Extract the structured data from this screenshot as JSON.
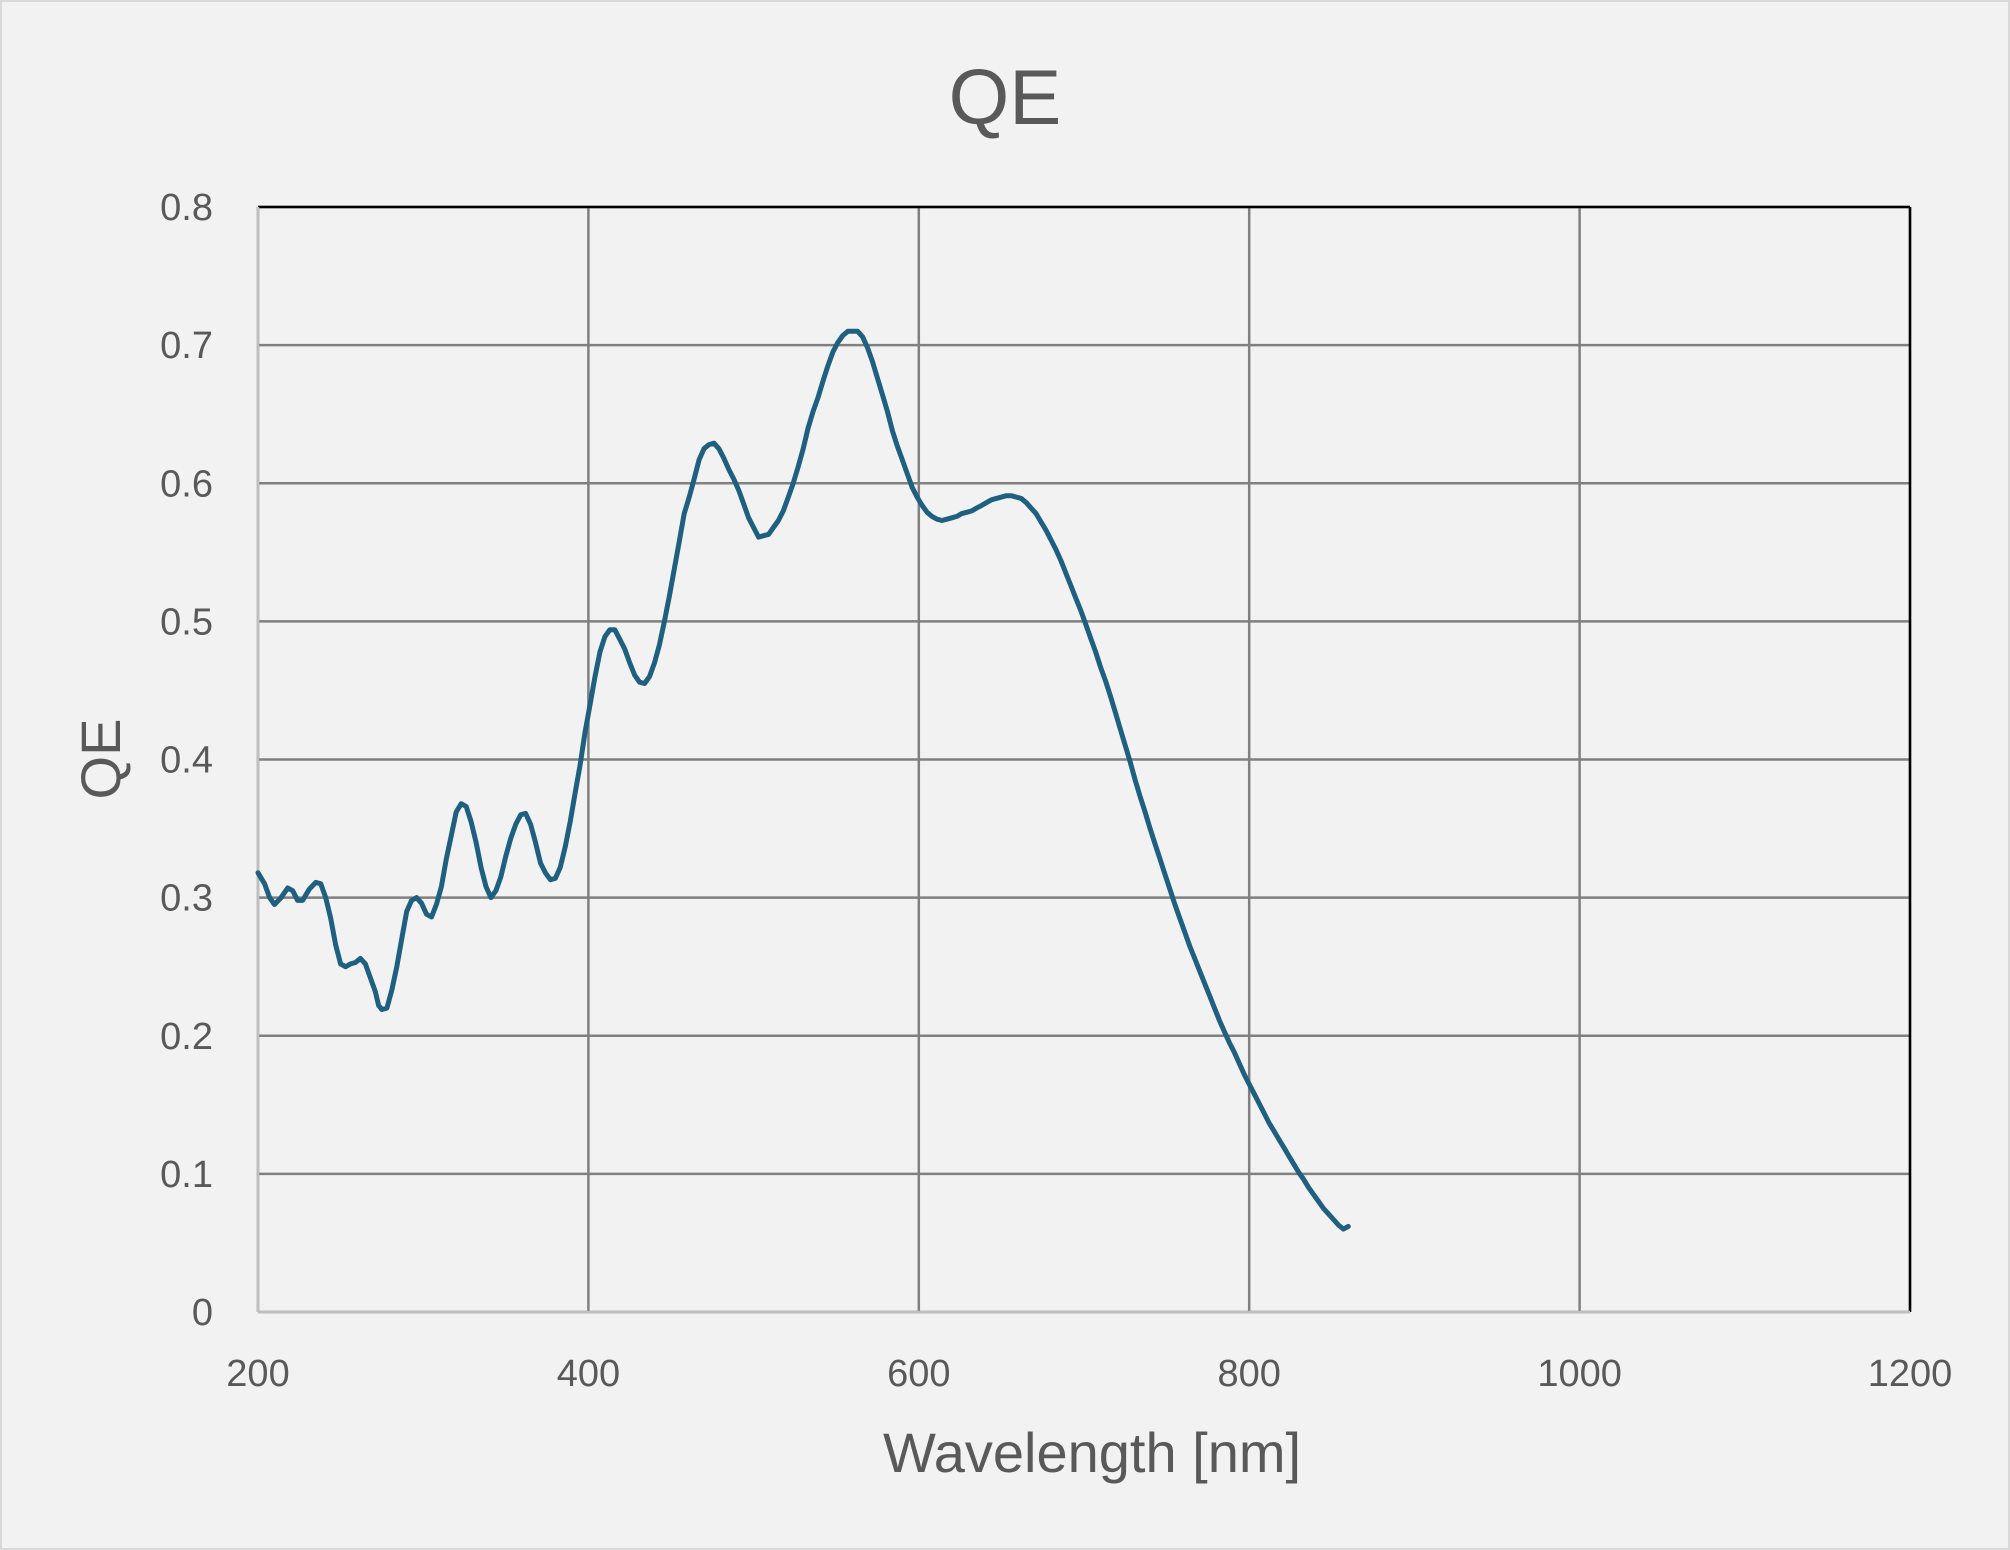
{
  "chart_data": {
    "type": "line",
    "title": "QE",
    "xlabel": "Wavelength [nm]",
    "ylabel": "QE",
    "xlim": [
      200,
      1200
    ],
    "ylim": [
      0,
      0.8
    ],
    "x_ticks": [
      "200",
      "400",
      "600",
      "800",
      "1000",
      "1200"
    ],
    "y_ticks": [
      "0",
      "0.1",
      "0.2",
      "0.3",
      "0.4",
      "0.5",
      "0.6",
      "0.7",
      "0.8"
    ],
    "grid": true,
    "legend": "none",
    "series": [
      {
        "color": "#1f5f7f",
        "points": [
          [
            200,
            0.318
          ],
          [
            204,
            0.31
          ],
          [
            207,
            0.3
          ],
          [
            210,
            0.295
          ],
          [
            214,
            0.3
          ],
          [
            218,
            0.307
          ],
          [
            221,
            0.305
          ],
          [
            224,
            0.298
          ],
          [
            227,
            0.298
          ],
          [
            231,
            0.306
          ],
          [
            235,
            0.311
          ],
          [
            238,
            0.31
          ],
          [
            241,
            0.3
          ],
          [
            244,
            0.285
          ],
          [
            247,
            0.266
          ],
          [
            250,
            0.252
          ],
          [
            253,
            0.25
          ],
          [
            256,
            0.252
          ],
          [
            259,
            0.253
          ],
          [
            262,
            0.256
          ],
          [
            265,
            0.252
          ],
          [
            268,
            0.242
          ],
          [
            271,
            0.232
          ],
          [
            273,
            0.222
          ],
          [
            275,
            0.219
          ],
          [
            278,
            0.22
          ],
          [
            281,
            0.233
          ],
          [
            284,
            0.25
          ],
          [
            287,
            0.27
          ],
          [
            290,
            0.29
          ],
          [
            293,
            0.298
          ],
          [
            296,
            0.3
          ],
          [
            299,
            0.296
          ],
          [
            302,
            0.288
          ],
          [
            305,
            0.286
          ],
          [
            308,
            0.295
          ],
          [
            311,
            0.308
          ],
          [
            314,
            0.328
          ],
          [
            317,
            0.345
          ],
          [
            320,
            0.362
          ],
          [
            323,
            0.368
          ],
          [
            326,
            0.366
          ],
          [
            329,
            0.355
          ],
          [
            332,
            0.34
          ],
          [
            335,
            0.322
          ],
          [
            338,
            0.308
          ],
          [
            341,
            0.3
          ],
          [
            344,
            0.305
          ],
          [
            347,
            0.315
          ],
          [
            350,
            0.33
          ],
          [
            353,
            0.343
          ],
          [
            356,
            0.353
          ],
          [
            359,
            0.36
          ],
          [
            362,
            0.361
          ],
          [
            365,
            0.353
          ],
          [
            368,
            0.34
          ],
          [
            371,
            0.325
          ],
          [
            374,
            0.318
          ],
          [
            377,
            0.313
          ],
          [
            380,
            0.314
          ],
          [
            383,
            0.322
          ],
          [
            386,
            0.337
          ],
          [
            389,
            0.355
          ],
          [
            392,
            0.376
          ],
          [
            395,
            0.396
          ],
          [
            398,
            0.42
          ],
          [
            401,
            0.44
          ],
          [
            404,
            0.46
          ],
          [
            407,
            0.478
          ],
          [
            410,
            0.489
          ],
          [
            413,
            0.494
          ],
          [
            416,
            0.494
          ],
          [
            419,
            0.487
          ],
          [
            422,
            0.48
          ],
          [
            425,
            0.47
          ],
          [
            428,
            0.461
          ],
          [
            431,
            0.456
          ],
          [
            434,
            0.455
          ],
          [
            437,
            0.46
          ],
          [
            440,
            0.47
          ],
          [
            443,
            0.483
          ],
          [
            446,
            0.5
          ],
          [
            449,
            0.518
          ],
          [
            452,
            0.538
          ],
          [
            455,
            0.558
          ],
          [
            458,
            0.578
          ],
          [
            461,
            0.59
          ],
          [
            464,
            0.603
          ],
          [
            467,
            0.617
          ],
          [
            470,
            0.625
          ],
          [
            473,
            0.628
          ],
          [
            476,
            0.629
          ],
          [
            479,
            0.625
          ],
          [
            482,
            0.618
          ],
          [
            485,
            0.61
          ],
          [
            488,
            0.603
          ],
          [
            491,
            0.595
          ],
          [
            494,
            0.585
          ],
          [
            497,
            0.575
          ],
          [
            500,
            0.568
          ],
          [
            503,
            0.561
          ],
          [
            506,
            0.562
          ],
          [
            509,
            0.563
          ],
          [
            512,
            0.568
          ],
          [
            515,
            0.573
          ],
          [
            518,
            0.58
          ],
          [
            521,
            0.59
          ],
          [
            524,
            0.6
          ],
          [
            527,
            0.612
          ],
          [
            530,
            0.625
          ],
          [
            533,
            0.64
          ],
          [
            536,
            0.652
          ],
          [
            539,
            0.662
          ],
          [
            542,
            0.674
          ],
          [
            545,
            0.685
          ],
          [
            548,
            0.695
          ],
          [
            551,
            0.702
          ],
          [
            554,
            0.707
          ],
          [
            557,
            0.71
          ],
          [
            560,
            0.71
          ],
          [
            563,
            0.71
          ],
          [
            566,
            0.706
          ],
          [
            569,
            0.698
          ],
          [
            572,
            0.688
          ],
          [
            575,
            0.676
          ],
          [
            578,
            0.664
          ],
          [
            581,
            0.652
          ],
          [
            584,
            0.638
          ],
          [
            587,
            0.627
          ],
          [
            590,
            0.617
          ],
          [
            593,
            0.607
          ],
          [
            596,
            0.597
          ],
          [
            599,
            0.59
          ],
          [
            602,
            0.584
          ],
          [
            605,
            0.579
          ],
          [
            608,
            0.576
          ],
          [
            611,
            0.574
          ],
          [
            614,
            0.573
          ],
          [
            617,
            0.574
          ],
          [
            620,
            0.575
          ],
          [
            623,
            0.576
          ],
          [
            626,
            0.578
          ],
          [
            629,
            0.579
          ],
          [
            632,
            0.58
          ],
          [
            635,
            0.582
          ],
          [
            638,
            0.584
          ],
          [
            641,
            0.586
          ],
          [
            644,
            0.588
          ],
          [
            647,
            0.589
          ],
          [
            650,
            0.59
          ],
          [
            653,
            0.591
          ],
          [
            656,
            0.591
          ],
          [
            659,
            0.59
          ],
          [
            662,
            0.589
          ],
          [
            665,
            0.586
          ],
          [
            668,
            0.582
          ],
          [
            671,
            0.578
          ],
          [
            674,
            0.572
          ],
          [
            677,
            0.566
          ],
          [
            680,
            0.559
          ],
          [
            683,
            0.552
          ],
          [
            686,
            0.544
          ],
          [
            689,
            0.535
          ],
          [
            692,
            0.526
          ],
          [
            695,
            0.517
          ],
          [
            698,
            0.508
          ],
          [
            701,
            0.498
          ],
          [
            704,
            0.488
          ],
          [
            707,
            0.478
          ],
          [
            710,
            0.467
          ],
          [
            713,
            0.457
          ],
          [
            716,
            0.446
          ],
          [
            719,
            0.434
          ],
          [
            722,
            0.422
          ],
          [
            725,
            0.41
          ],
          [
            728,
            0.398
          ],
          [
            731,
            0.385
          ],
          [
            734,
            0.373
          ],
          [
            737,
            0.362
          ],
          [
            740,
            0.35
          ],
          [
            743,
            0.339
          ],
          [
            746,
            0.328
          ],
          [
            749,
            0.317
          ],
          [
            752,
            0.306
          ],
          [
            755,
            0.295
          ],
          [
            758,
            0.285
          ],
          [
            761,
            0.275
          ],
          [
            764,
            0.265
          ],
          [
            767,
            0.256
          ],
          [
            770,
            0.247
          ],
          [
            773,
            0.238
          ],
          [
            776,
            0.229
          ],
          [
            779,
            0.22
          ],
          [
            782,
            0.211
          ],
          [
            785,
            0.203
          ],
          [
            788,
            0.195
          ],
          [
            791,
            0.188
          ],
          [
            794,
            0.18
          ],
          [
            797,
            0.172
          ],
          [
            800,
            0.165
          ],
          [
            803,
            0.158
          ],
          [
            806,
            0.151
          ],
          [
            809,
            0.144
          ],
          [
            812,
            0.137
          ],
          [
            815,
            0.131
          ],
          [
            818,
            0.125
          ],
          [
            821,
            0.119
          ],
          [
            824,
            0.113
          ],
          [
            827,
            0.107
          ],
          [
            830,
            0.101
          ],
          [
            833,
            0.096
          ],
          [
            836,
            0.09
          ],
          [
            839,
            0.085
          ],
          [
            842,
            0.08
          ],
          [
            845,
            0.075
          ],
          [
            848,
            0.071
          ],
          [
            851,
            0.067
          ],
          [
            854,
            0.063
          ],
          [
            857,
            0.06
          ],
          [
            860,
            0.062
          ]
        ]
      }
    ]
  }
}
